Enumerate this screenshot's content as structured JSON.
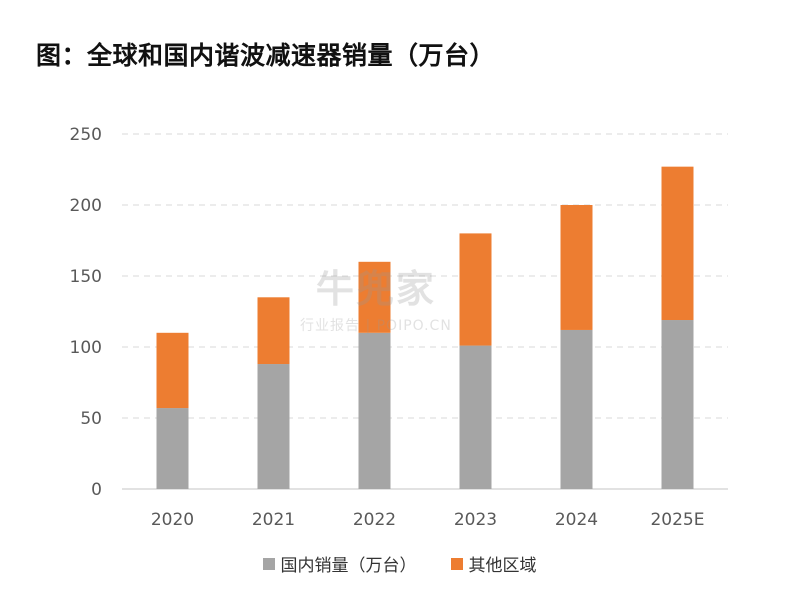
{
  "title": "图：全球和国内谐波减速器销量（万台）",
  "colors": {
    "domestic": "#a5a5a5",
    "other": "#ed7d31",
    "grid": "#d9d9d9",
    "axis": "#d0d0d0",
    "text": "#595959"
  },
  "watermark": {
    "logo": "牛兜家",
    "sub": "行业报告 | POIPO.CN"
  },
  "legend": {
    "domestic": "国内销量（万台）",
    "other": "其他区域"
  },
  "chart_data": {
    "type": "bar",
    "stacked": true,
    "categories": [
      "2020",
      "2021",
      "2022",
      "2023",
      "2024",
      "2025E"
    ],
    "series": [
      {
        "name": "国内销量（万台）",
        "values": [
          57,
          88,
          110,
          101,
          112,
          119
        ]
      },
      {
        "name": "其他区域",
        "values": [
          53,
          47,
          50,
          79,
          88,
          108
        ]
      }
    ],
    "yticks": [
      "0",
      "50",
      "100",
      "150",
      "200",
      "250"
    ],
    "ylim": [
      0,
      250
    ],
    "grid": true,
    "legend_position": "bottom"
  }
}
